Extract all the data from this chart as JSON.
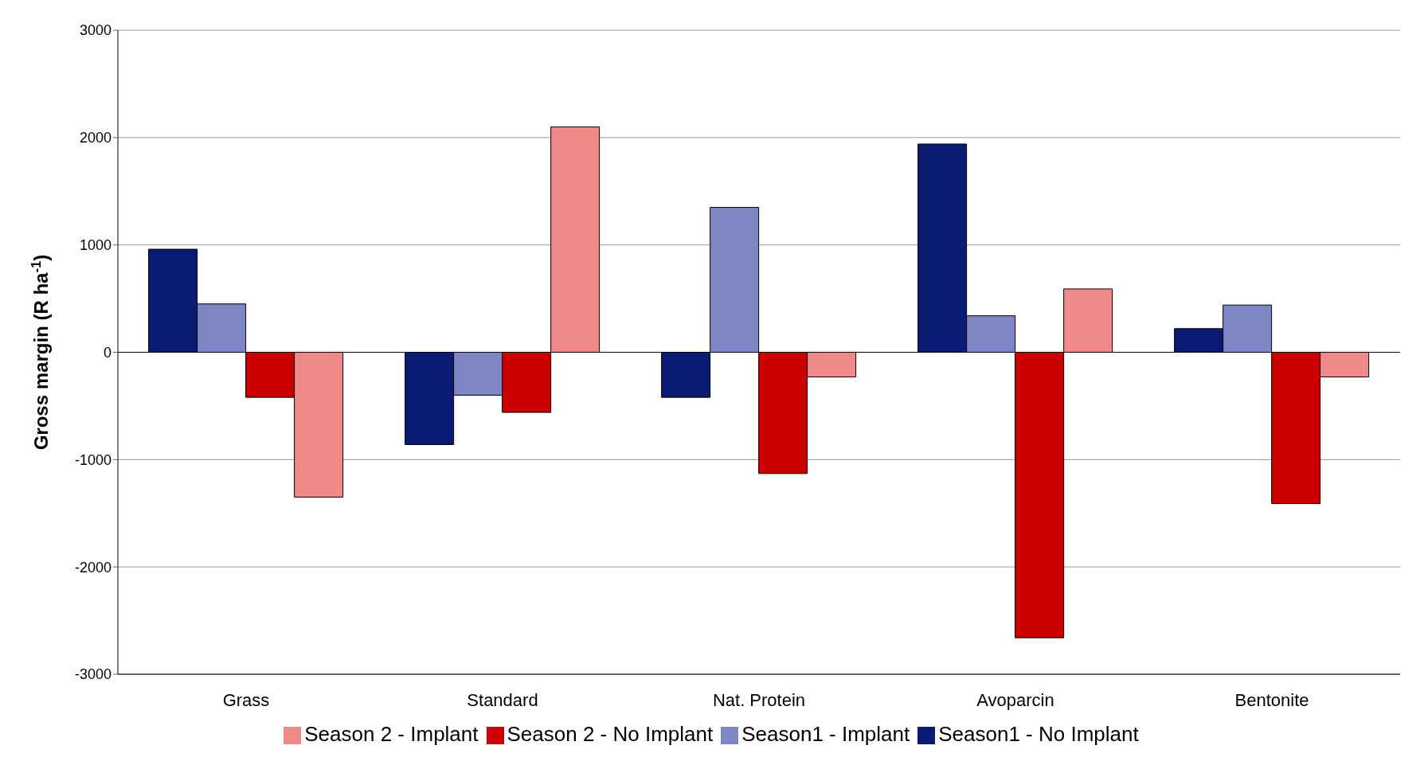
{
  "chart_data": {
    "type": "bar",
    "ylabel": "Gross margin (R ha$^{-1}$)",
    "categories": [
      "Grass",
      "Standard",
      "Nat. Protein",
      "Avoparcin",
      "Bentonite"
    ],
    "series": [
      {
        "name": "Season1 - No Implant",
        "color": "#0b1a72",
        "values": [
          960,
          -860,
          -420,
          1940,
          220
        ]
      },
      {
        "name": "Season1 - Implant",
        "color": "#7f86c4",
        "values": [
          450,
          -400,
          1350,
          340,
          440
        ]
      },
      {
        "name": "Season 2 - No Implant",
        "color": "#cc0000",
        "values": [
          -420,
          -560,
          -1130,
          -2660,
          -1410
        ]
      },
      {
        "name": "Season 2 - Implant",
        "color": "#ee8a8a",
        "values": [
          -1350,
          2100,
          -230,
          590,
          -230
        ]
      }
    ],
    "ylim": [
      -3000,
      3000
    ],
    "yticks": [
      -3000,
      -2000,
      -1000,
      0,
      1000,
      2000,
      3000
    ],
    "grid": "y",
    "legend": "bottom"
  }
}
